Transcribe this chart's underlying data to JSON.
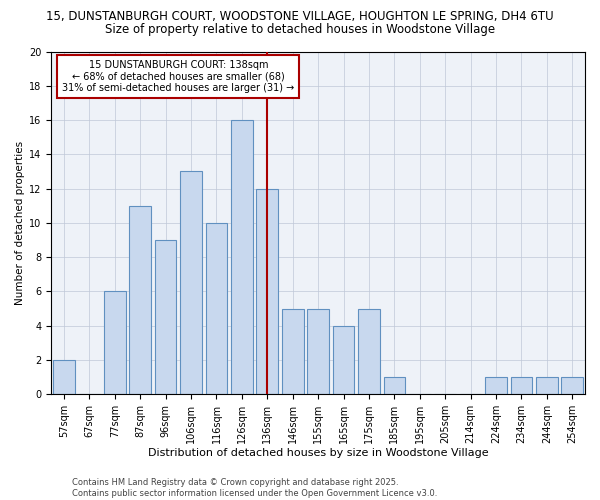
{
  "title1": "15, DUNSTANBURGH COURT, WOODSTONE VILLAGE, HOUGHTON LE SPRING, DH4 6TU",
  "title2": "Size of property relative to detached houses in Woodstone Village",
  "xlabel": "Distribution of detached houses by size in Woodstone Village",
  "ylabel": "Number of detached properties",
  "categories": [
    "57sqm",
    "67sqm",
    "77sqm",
    "87sqm",
    "96sqm",
    "106sqm",
    "116sqm",
    "126sqm",
    "136sqm",
    "146sqm",
    "155sqm",
    "165sqm",
    "175sqm",
    "185sqm",
    "195sqm",
    "205sqm",
    "214sqm",
    "224sqm",
    "234sqm",
    "244sqm",
    "254sqm"
  ],
  "values": [
    2,
    0,
    6,
    11,
    9,
    13,
    10,
    16,
    12,
    5,
    5,
    4,
    5,
    1,
    0,
    0,
    0,
    1,
    1,
    1,
    1
  ],
  "bar_color": "#c8d8ee",
  "bar_edge_color": "#6090c0",
  "bar_linewidth": 0.8,
  "vline_x": 8,
  "vline_color": "#aa0000",
  "vline_linewidth": 1.5,
  "annotation_text": "15 DUNSTANBURGH COURT: 138sqm\n← 68% of detached houses are smaller (68)\n31% of semi-detached houses are larger (31) →",
  "annotation_box_color": "#aa0000",
  "ylim": [
    0,
    20
  ],
  "yticks": [
    0,
    2,
    4,
    6,
    8,
    10,
    12,
    14,
    16,
    18,
    20
  ],
  "grid_color": "#c0c8d8",
  "background_color": "#eef2f8",
  "footer": "Contains HM Land Registry data © Crown copyright and database right 2025.\nContains public sector information licensed under the Open Government Licence v3.0.",
  "title1_fontsize": 8.5,
  "title2_fontsize": 8.5,
  "xlabel_fontsize": 8,
  "ylabel_fontsize": 7.5,
  "tick_fontsize": 7,
  "annotation_fontsize": 7,
  "footer_fontsize": 6
}
